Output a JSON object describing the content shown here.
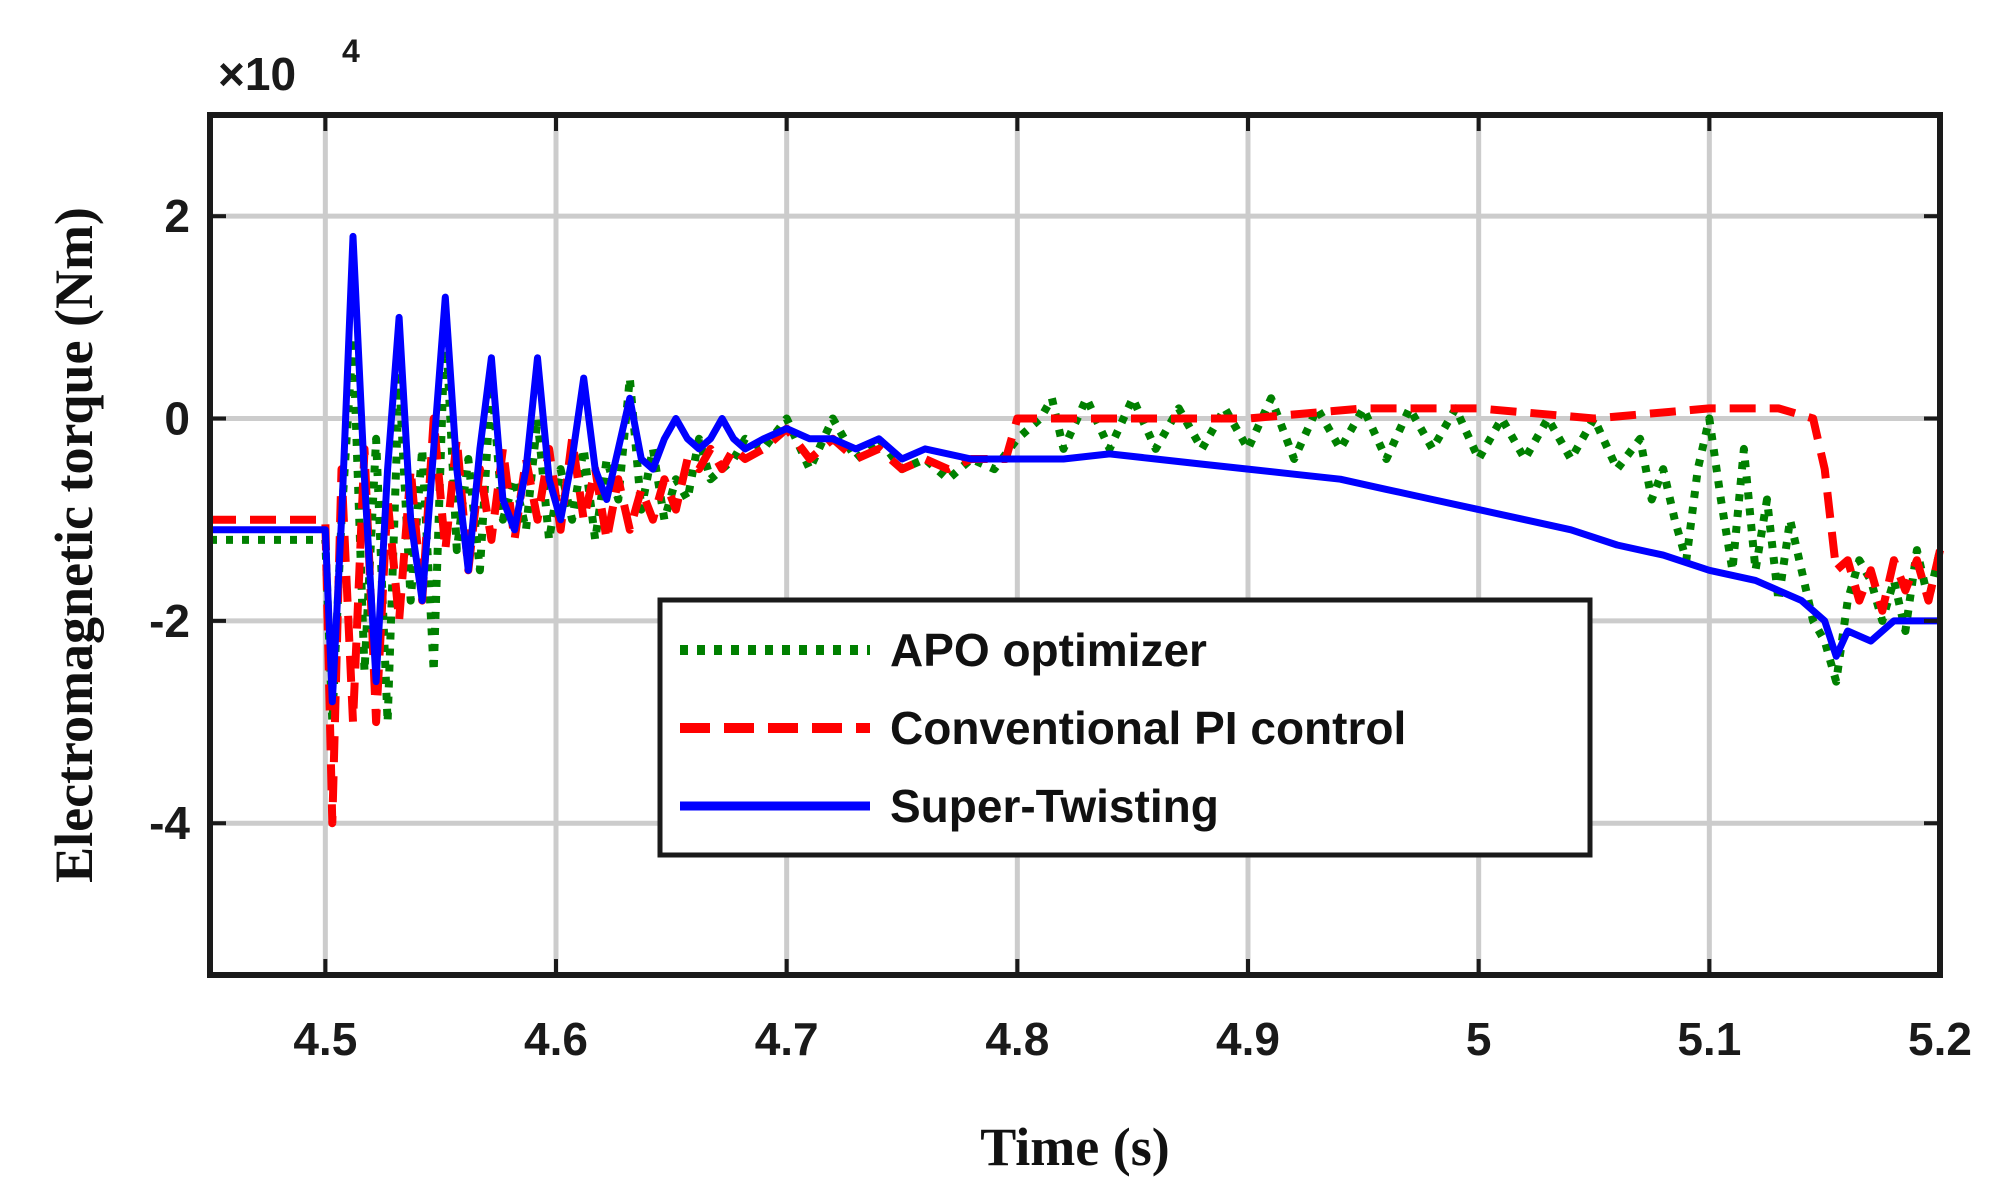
{
  "chart_data": {
    "type": "line",
    "title": "",
    "xlabel": "Time (s)",
    "ylabel": "Electromagnetic torque (Nm)",
    "y_multiplier_label": "×10",
    "y_multiplier_exponent": "4",
    "xlim": [
      4.45,
      5.2
    ],
    "ylim": [
      -5.5,
      3
    ],
    "grid": true,
    "x_ticks": [
      {
        "value": 4.5,
        "label": "4.5"
      },
      {
        "value": 4.6,
        "label": "4.6"
      },
      {
        "value": 4.7,
        "label": "4.7"
      },
      {
        "value": 4.8,
        "label": "4.8"
      },
      {
        "value": 4.9,
        "label": "4.9"
      },
      {
        "value": 5.0,
        "label": "5"
      },
      {
        "value": 5.1,
        "label": "5.1"
      },
      {
        "value": 5.2,
        "label": "5.2"
      }
    ],
    "y_ticks": [
      {
        "value": 2,
        "label": "2"
      },
      {
        "value": 0,
        "label": "0"
      },
      {
        "value": -2,
        "label": "-2"
      },
      {
        "value": -4,
        "label": "-4"
      }
    ],
    "legend_position": "lower-center",
    "series": [
      {
        "name": "APO optimizer",
        "color": "#008000",
        "style": "dotted",
        "x": [
          4.45,
          4.5,
          4.503,
          4.507,
          4.512,
          4.517,
          4.522,
          4.527,
          4.532,
          4.537,
          4.542,
          4.547,
          4.552,
          4.557,
          4.562,
          4.567,
          4.572,
          4.577,
          4.582,
          4.587,
          4.592,
          4.597,
          4.602,
          4.607,
          4.612,
          4.617,
          4.622,
          4.627,
          4.632,
          4.637,
          4.642,
          4.647,
          4.652,
          4.657,
          4.662,
          4.667,
          4.672,
          4.677,
          4.682,
          4.69,
          4.7,
          4.71,
          4.72,
          4.73,
          4.74,
          4.75,
          4.76,
          4.77,
          4.78,
          4.79,
          4.8,
          4.81,
          4.815,
          4.82,
          4.83,
          4.84,
          4.85,
          4.86,
          4.87,
          4.88,
          4.89,
          4.9,
          4.91,
          4.92,
          4.93,
          4.94,
          4.95,
          4.96,
          4.97,
          4.98,
          4.99,
          5.0,
          5.01,
          5.02,
          5.03,
          5.04,
          5.05,
          5.06,
          5.07,
          5.075,
          5.08,
          5.085,
          5.09,
          5.095,
          5.1,
          5.105,
          5.11,
          5.115,
          5.12,
          5.125,
          5.13,
          5.135,
          5.14,
          5.145,
          5.15,
          5.155,
          5.16,
          5.165,
          5.17,
          5.175,
          5.18,
          5.185,
          5.19,
          5.195,
          5.2
        ],
        "values": [
          -1.2,
          -1.2,
          -3.0,
          -1.0,
          0.8,
          -2.5,
          -0.2,
          -3.0,
          0.4,
          -1.8,
          -0.3,
          -2.5,
          1.0,
          -1.3,
          -0.4,
          -1.5,
          0.4,
          -1.0,
          -0.6,
          -1.1,
          0.0,
          -1.2,
          -0.5,
          -1.0,
          -0.3,
          -1.2,
          -0.4,
          -0.8,
          0.4,
          -0.9,
          -0.3,
          -1.0,
          -0.6,
          -0.8,
          -0.2,
          -0.6,
          -0.5,
          -0.4,
          -0.2,
          -0.3,
          0.0,
          -0.5,
          0.0,
          -0.4,
          -0.2,
          -0.5,
          -0.4,
          -0.6,
          -0.4,
          -0.5,
          -0.2,
          0.0,
          0.2,
          -0.3,
          0.2,
          -0.3,
          0.2,
          -0.3,
          0.1,
          -0.3,
          0.1,
          -0.3,
          0.2,
          -0.4,
          0.1,
          -0.3,
          0.1,
          -0.4,
          0.1,
          -0.3,
          0.1,
          -0.4,
          0.0,
          -0.4,
          0.0,
          -0.4,
          0.0,
          -0.5,
          -0.2,
          -0.8,
          -0.5,
          -1.0,
          -1.4,
          -0.5,
          0.0,
          -0.8,
          -1.5,
          -0.3,
          -1.5,
          -0.8,
          -1.8,
          -1.0,
          -1.5,
          -2.0,
          -2.2,
          -2.6,
          -1.8,
          -1.4,
          -1.6,
          -2.0,
          -1.6,
          -2.1,
          -1.3,
          -1.8,
          -1.3
        ]
      },
      {
        "name": "Conventional PI control",
        "color": "#ff0000",
        "style": "dashed",
        "x": [
          4.45,
          4.5,
          4.503,
          4.507,
          4.512,
          4.517,
          4.522,
          4.527,
          4.532,
          4.537,
          4.542,
          4.547,
          4.552,
          4.557,
          4.562,
          4.567,
          4.572,
          4.577,
          4.582,
          4.587,
          4.592,
          4.597,
          4.602,
          4.607,
          4.612,
          4.617,
          4.622,
          4.627,
          4.632,
          4.637,
          4.642,
          4.647,
          4.652,
          4.657,
          4.662,
          4.667,
          4.672,
          4.677,
          4.682,
          4.69,
          4.7,
          4.71,
          4.72,
          4.73,
          4.74,
          4.75,
          4.76,
          4.77,
          4.78,
          4.795,
          4.8,
          4.85,
          4.9,
          4.95,
          5.0,
          5.05,
          5.1,
          5.13,
          5.145,
          5.15,
          5.155,
          5.16,
          5.165,
          5.17,
          5.175,
          5.18,
          5.185,
          5.19,
          5.195,
          5.2
        ],
        "values": [
          -1.0,
          -1.0,
          -4.0,
          -0.5,
          -3.0,
          -0.3,
          -3.0,
          -0.8,
          -2.0,
          -0.5,
          -1.8,
          0.0,
          -1.3,
          -0.2,
          -1.5,
          -0.5,
          -1.2,
          -0.3,
          -1.2,
          -0.4,
          -1.0,
          -0.3,
          -1.1,
          -0.2,
          -1.0,
          -0.5,
          -1.2,
          -0.6,
          -1.1,
          -0.7,
          -1.0,
          -0.6,
          -0.9,
          -0.4,
          -0.5,
          -0.3,
          -0.5,
          -0.3,
          -0.4,
          -0.3,
          -0.1,
          -0.4,
          -0.2,
          -0.4,
          -0.3,
          -0.5,
          -0.4,
          -0.5,
          -0.4,
          -0.4,
          0.0,
          0.0,
          0.0,
          0.1,
          0.1,
          0.0,
          0.1,
          0.1,
          0.0,
          -0.5,
          -1.5,
          -1.4,
          -1.8,
          -1.5,
          -1.9,
          -1.4,
          -1.7,
          -1.4,
          -1.8,
          -1.3
        ]
      },
      {
        "name": "Super-Twisting",
        "color": "#0000ff",
        "style": "solid",
        "x": [
          4.45,
          4.5,
          4.503,
          4.507,
          4.512,
          4.517,
          4.522,
          4.527,
          4.532,
          4.537,
          4.542,
          4.547,
          4.552,
          4.557,
          4.562,
          4.567,
          4.572,
          4.577,
          4.582,
          4.587,
          4.592,
          4.597,
          4.602,
          4.607,
          4.612,
          4.617,
          4.622,
          4.627,
          4.632,
          4.637,
          4.642,
          4.647,
          4.652,
          4.657,
          4.662,
          4.667,
          4.672,
          4.677,
          4.682,
          4.69,
          4.7,
          4.71,
          4.72,
          4.73,
          4.74,
          4.75,
          4.76,
          4.78,
          4.8,
          4.82,
          4.84,
          4.86,
          4.88,
          4.9,
          4.92,
          4.94,
          4.96,
          4.98,
          5.0,
          5.02,
          5.04,
          5.06,
          5.08,
          5.1,
          5.12,
          5.14,
          5.15,
          5.155,
          5.16,
          5.17,
          5.18,
          5.19,
          5.2
        ],
        "values": [
          -1.1,
          -1.1,
          -2.8,
          -1.0,
          1.8,
          -0.6,
          -2.6,
          -0.5,
          1.0,
          -1.0,
          -1.8,
          -0.3,
          1.2,
          -0.5,
          -1.5,
          -0.3,
          0.6,
          -0.8,
          -1.1,
          -0.5,
          0.6,
          -0.6,
          -1.0,
          -0.4,
          0.4,
          -0.5,
          -0.8,
          -0.3,
          0.2,
          -0.4,
          -0.5,
          -0.2,
          0.0,
          -0.2,
          -0.3,
          -0.2,
          0.0,
          -0.2,
          -0.3,
          -0.2,
          -0.1,
          -0.2,
          -0.2,
          -0.3,
          -0.2,
          -0.4,
          -0.3,
          -0.4,
          -0.4,
          -0.4,
          -0.35,
          -0.4,
          -0.45,
          -0.5,
          -0.55,
          -0.6,
          -0.7,
          -0.8,
          -0.9,
          -1.0,
          -1.1,
          -1.25,
          -1.35,
          -1.5,
          -1.6,
          -1.8,
          -2.0,
          -2.35,
          -2.1,
          -2.2,
          -2.0,
          -2.0,
          -2.0
        ]
      }
    ]
  }
}
